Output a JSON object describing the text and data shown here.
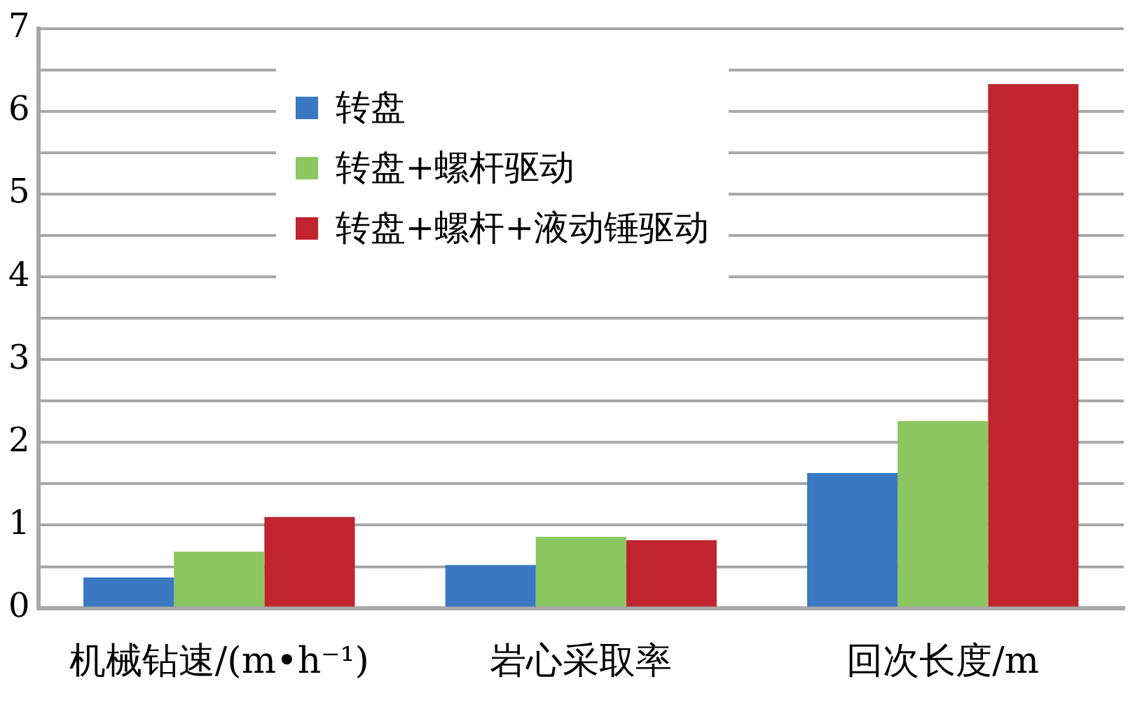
{
  "chart_data": {
    "type": "bar",
    "categories": [
      "机械钻速/(m•h⁻¹)",
      "岩心采取率",
      "回次长度/m"
    ],
    "series": [
      {
        "name": "转盘",
        "color": "#3a78c2",
        "values": [
          0.37,
          0.52,
          1.63
        ]
      },
      {
        "name": "转盘+螺杆驱动",
        "color": "#8cc660",
        "values": [
          0.68,
          0.86,
          2.26
        ]
      },
      {
        "name": "转盘+螺杆+液动锤驱动",
        "color": "#c0242e",
        "values": [
          1.1,
          0.82,
          6.33
        ]
      }
    ],
    "ylim": [
      0,
      7
    ],
    "yticks": [
      0,
      {
        "value": 0.5,
        "label": null
      },
      1,
      {
        "value": 1.5,
        "label": null
      },
      2,
      {
        "value": 2.5,
        "label": null
      },
      3,
      {
        "value": 3.5,
        "label": null
      },
      4,
      {
        "value": 4.5,
        "label": null
      },
      5,
      {
        "value": 5.5,
        "label": null
      },
      6,
      {
        "value": 6.5,
        "label": null
      },
      7
    ],
    "grid": "y",
    "legend": "top"
  }
}
